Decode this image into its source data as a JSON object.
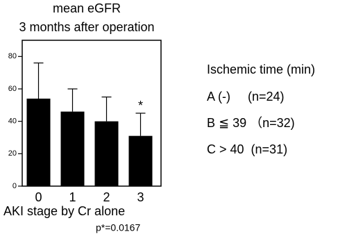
{
  "chart_data": {
    "type": "bar",
    "title": [
      "mean eGFR",
      "3 months after operation"
    ],
    "categories": [
      "0",
      "1",
      "2",
      "3"
    ],
    "values": [
      54,
      46,
      40,
      31
    ],
    "errors": [
      22,
      14,
      15,
      14
    ],
    "color": "#000000",
    "ylim": [
      0,
      90
    ],
    "yticks": [
      0,
      20,
      40,
      60,
      80
    ],
    "x_label": "AKI stage by Cr alone",
    "annotations": [
      {
        "text": "*",
        "category": "3"
      }
    ],
    "note": "p*=0.0167",
    "legend_title": "Ischemic time (min)",
    "legend_items": [
      "A (-)     (n=24)",
      "B ≦ 39 （n=32)",
      "C > 40  (n=31)"
    ]
  }
}
